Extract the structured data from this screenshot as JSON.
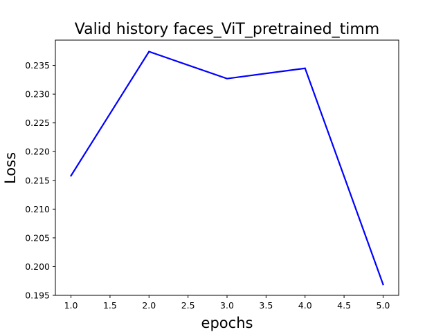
{
  "chart_data": {
    "type": "line",
    "title": "Valid history faces_ViT_pretrained_timm",
    "xlabel": "epochs",
    "ylabel": "Loss",
    "x": [
      1.0,
      2.0,
      3.0,
      4.0,
      5.0
    ],
    "series": [
      {
        "values": [
          0.2158,
          0.2374,
          0.2327,
          0.2345,
          0.1969
        ],
        "color": "#0000ff"
      }
    ],
    "xlim": [
      0.8,
      5.2
    ],
    "ylim": [
      0.195,
      0.2394
    ],
    "xticks": [
      "1.0",
      "1.5",
      "2.0",
      "2.5",
      "3.0",
      "3.5",
      "4.0",
      "4.5",
      "5.0"
    ],
    "yticks": [
      "0.195",
      "0.200",
      "0.205",
      "0.210",
      "0.215",
      "0.220",
      "0.225",
      "0.230",
      "0.235"
    ],
    "grid": false,
    "legend": "none"
  }
}
